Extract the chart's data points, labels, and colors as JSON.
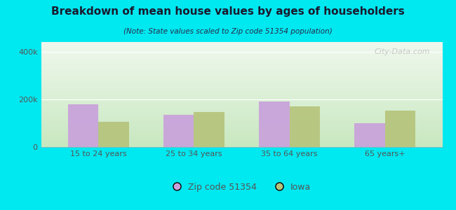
{
  "title": "Breakdown of mean house values by ages of householders",
  "subtitle": "(Note: State values scaled to Zip code 51354 population)",
  "categories": [
    "15 to 24 years",
    "25 to 34 years",
    "35 to 64 years",
    "65 years+"
  ],
  "zip_values": [
    180000,
    135000,
    190000,
    100000
  ],
  "iowa_values": [
    105000,
    148000,
    170000,
    152000
  ],
  "zip_color": "#c9a0dc",
  "iowa_color": "#b5c47a",
  "background_outer": "#00e8f0",
  "background_chart_top": "#c8e8c0",
  "background_chart_bottom": "#f0f8ee",
  "ylim": [
    0,
    440000
  ],
  "yticks": [
    0,
    200000,
    400000
  ],
  "ytick_labels": [
    "0",
    "200k",
    "400k"
  ],
  "legend_zip_label": "Zip code 51354",
  "legend_iowa_label": "Iowa",
  "bar_width": 0.32,
  "watermark": "City-Data.com",
  "title_color": "#1a1a2e",
  "subtitle_color": "#2a2a4a",
  "tick_color": "#555555"
}
